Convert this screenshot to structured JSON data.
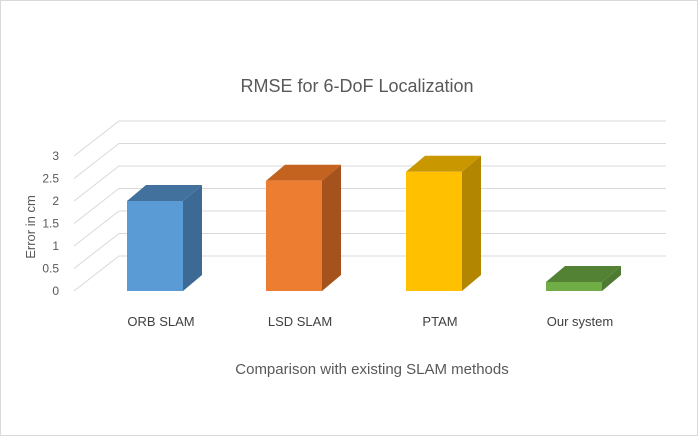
{
  "chart_data": {
    "type": "bar",
    "title": "RMSE for 6-DoF Localization",
    "xlabel": "Comparison with existing SLAM methods",
    "ylabel": "Error in cm",
    "categories": [
      "ORB SLAM",
      "LSD SLAM",
      "PTAM",
      "Our system"
    ],
    "values": [
      2.0,
      2.45,
      2.65,
      0.2
    ],
    "ylim": [
      0,
      3
    ],
    "yticks": [
      "0",
      "0.5",
      "1",
      "1.5",
      "2",
      "2.5",
      "3"
    ],
    "grid": true,
    "legend": "none",
    "style": "3d-column",
    "colors": [
      {
        "front": "#5b9bd5",
        "side": "#3d6a94",
        "top": "#41719c"
      },
      {
        "front": "#ed7d31",
        "side": "#a5521d",
        "top": "#c4621f"
      },
      {
        "front": "#ffc000",
        "side": "#b28600",
        "top": "#c99700"
      },
      {
        "front": "#70ad47",
        "side": "#4e7a31",
        "top": "#548235"
      }
    ]
  }
}
